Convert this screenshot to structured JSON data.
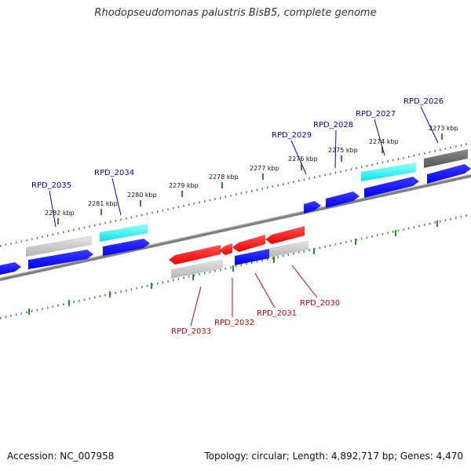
{
  "title": "Rhodopseudomonas palustris BisB5, complete genome",
  "accession": "Accession: NC_007958",
  "summary": "Topology: circular; Length: 4,892,717 bp; Genes: 4,470",
  "colors": {
    "forward_label": "#0000cc",
    "reverse_label": "#cc0000",
    "forward_gene": "#0000ee",
    "reverse_gene": "#ee0000",
    "cds_cyan": "#00e5e5",
    "cds_gray": "#b5b5b5",
    "cds_dark": "#555555",
    "ticks": "#2e8b2e",
    "backbone": "#808080"
  },
  "ticks": [
    {
      "label": "2273 kbp"
    },
    {
      "label": "2274 kbp"
    },
    {
      "label": "2275 kbp"
    },
    {
      "label": "2276 kbp"
    },
    {
      "label": "2277 kbp"
    },
    {
      "label": "2278 kbp"
    },
    {
      "label": "2279 kbp"
    },
    {
      "label": "2280 kbp"
    },
    {
      "label": "2281 kbp"
    },
    {
      "label": "2282 kbp"
    }
  ],
  "genes": [
    {
      "id": "RPD_2026",
      "strand": "forward"
    },
    {
      "id": "RPD_2027",
      "strand": "forward"
    },
    {
      "id": "RPD_2028",
      "strand": "forward"
    },
    {
      "id": "RPD_2029",
      "strand": "forward"
    },
    {
      "id": "RPD_2034",
      "strand": "forward"
    },
    {
      "id": "RPD_2035",
      "strand": "forward"
    },
    {
      "id": "RPD_2030",
      "strand": "reverse"
    },
    {
      "id": "RPD_2031",
      "strand": "reverse"
    },
    {
      "id": "RPD_2032",
      "strand": "reverse"
    },
    {
      "id": "RPD_2033",
      "strand": "reverse"
    }
  ]
}
